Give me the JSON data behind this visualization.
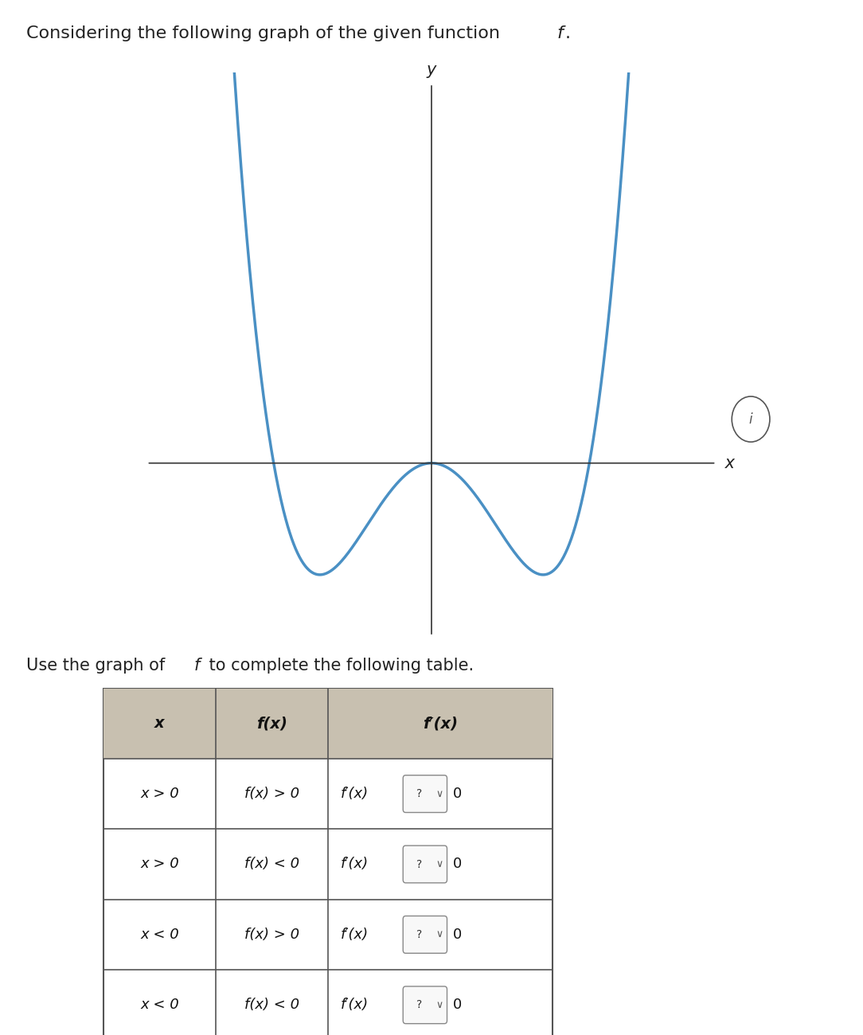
{
  "title_text": "Considering the following graph of the given function ",
  "title_italic": "f",
  "subtitle_text": "Use the graph of ",
  "subtitle_italic": "f",
  "subtitle_text2": " to complete the following table.",
  "curve_color": "#4a90c4",
  "axis_color": "#333333",
  "bg_color": "#ffffff",
  "header_bg": "#c8c0b0",
  "table_rows": [
    [
      "x > 0",
      "f(x) > 0",
      "f′(x) [?∨] 0"
    ],
    [
      "x > 0",
      "f(x) < 0",
      "f′(x) [?∨] 0"
    ],
    [
      "x < 0",
      "f(x) > 0",
      "f′(x) [?∨] 0"
    ],
    [
      "x < 0",
      "f(x) < 0",
      "f′(x) [?∨] 0"
    ]
  ],
  "table_headers": [
    "x",
    "f(x)",
    "f′(x)"
  ],
  "info_circle_text": "i"
}
